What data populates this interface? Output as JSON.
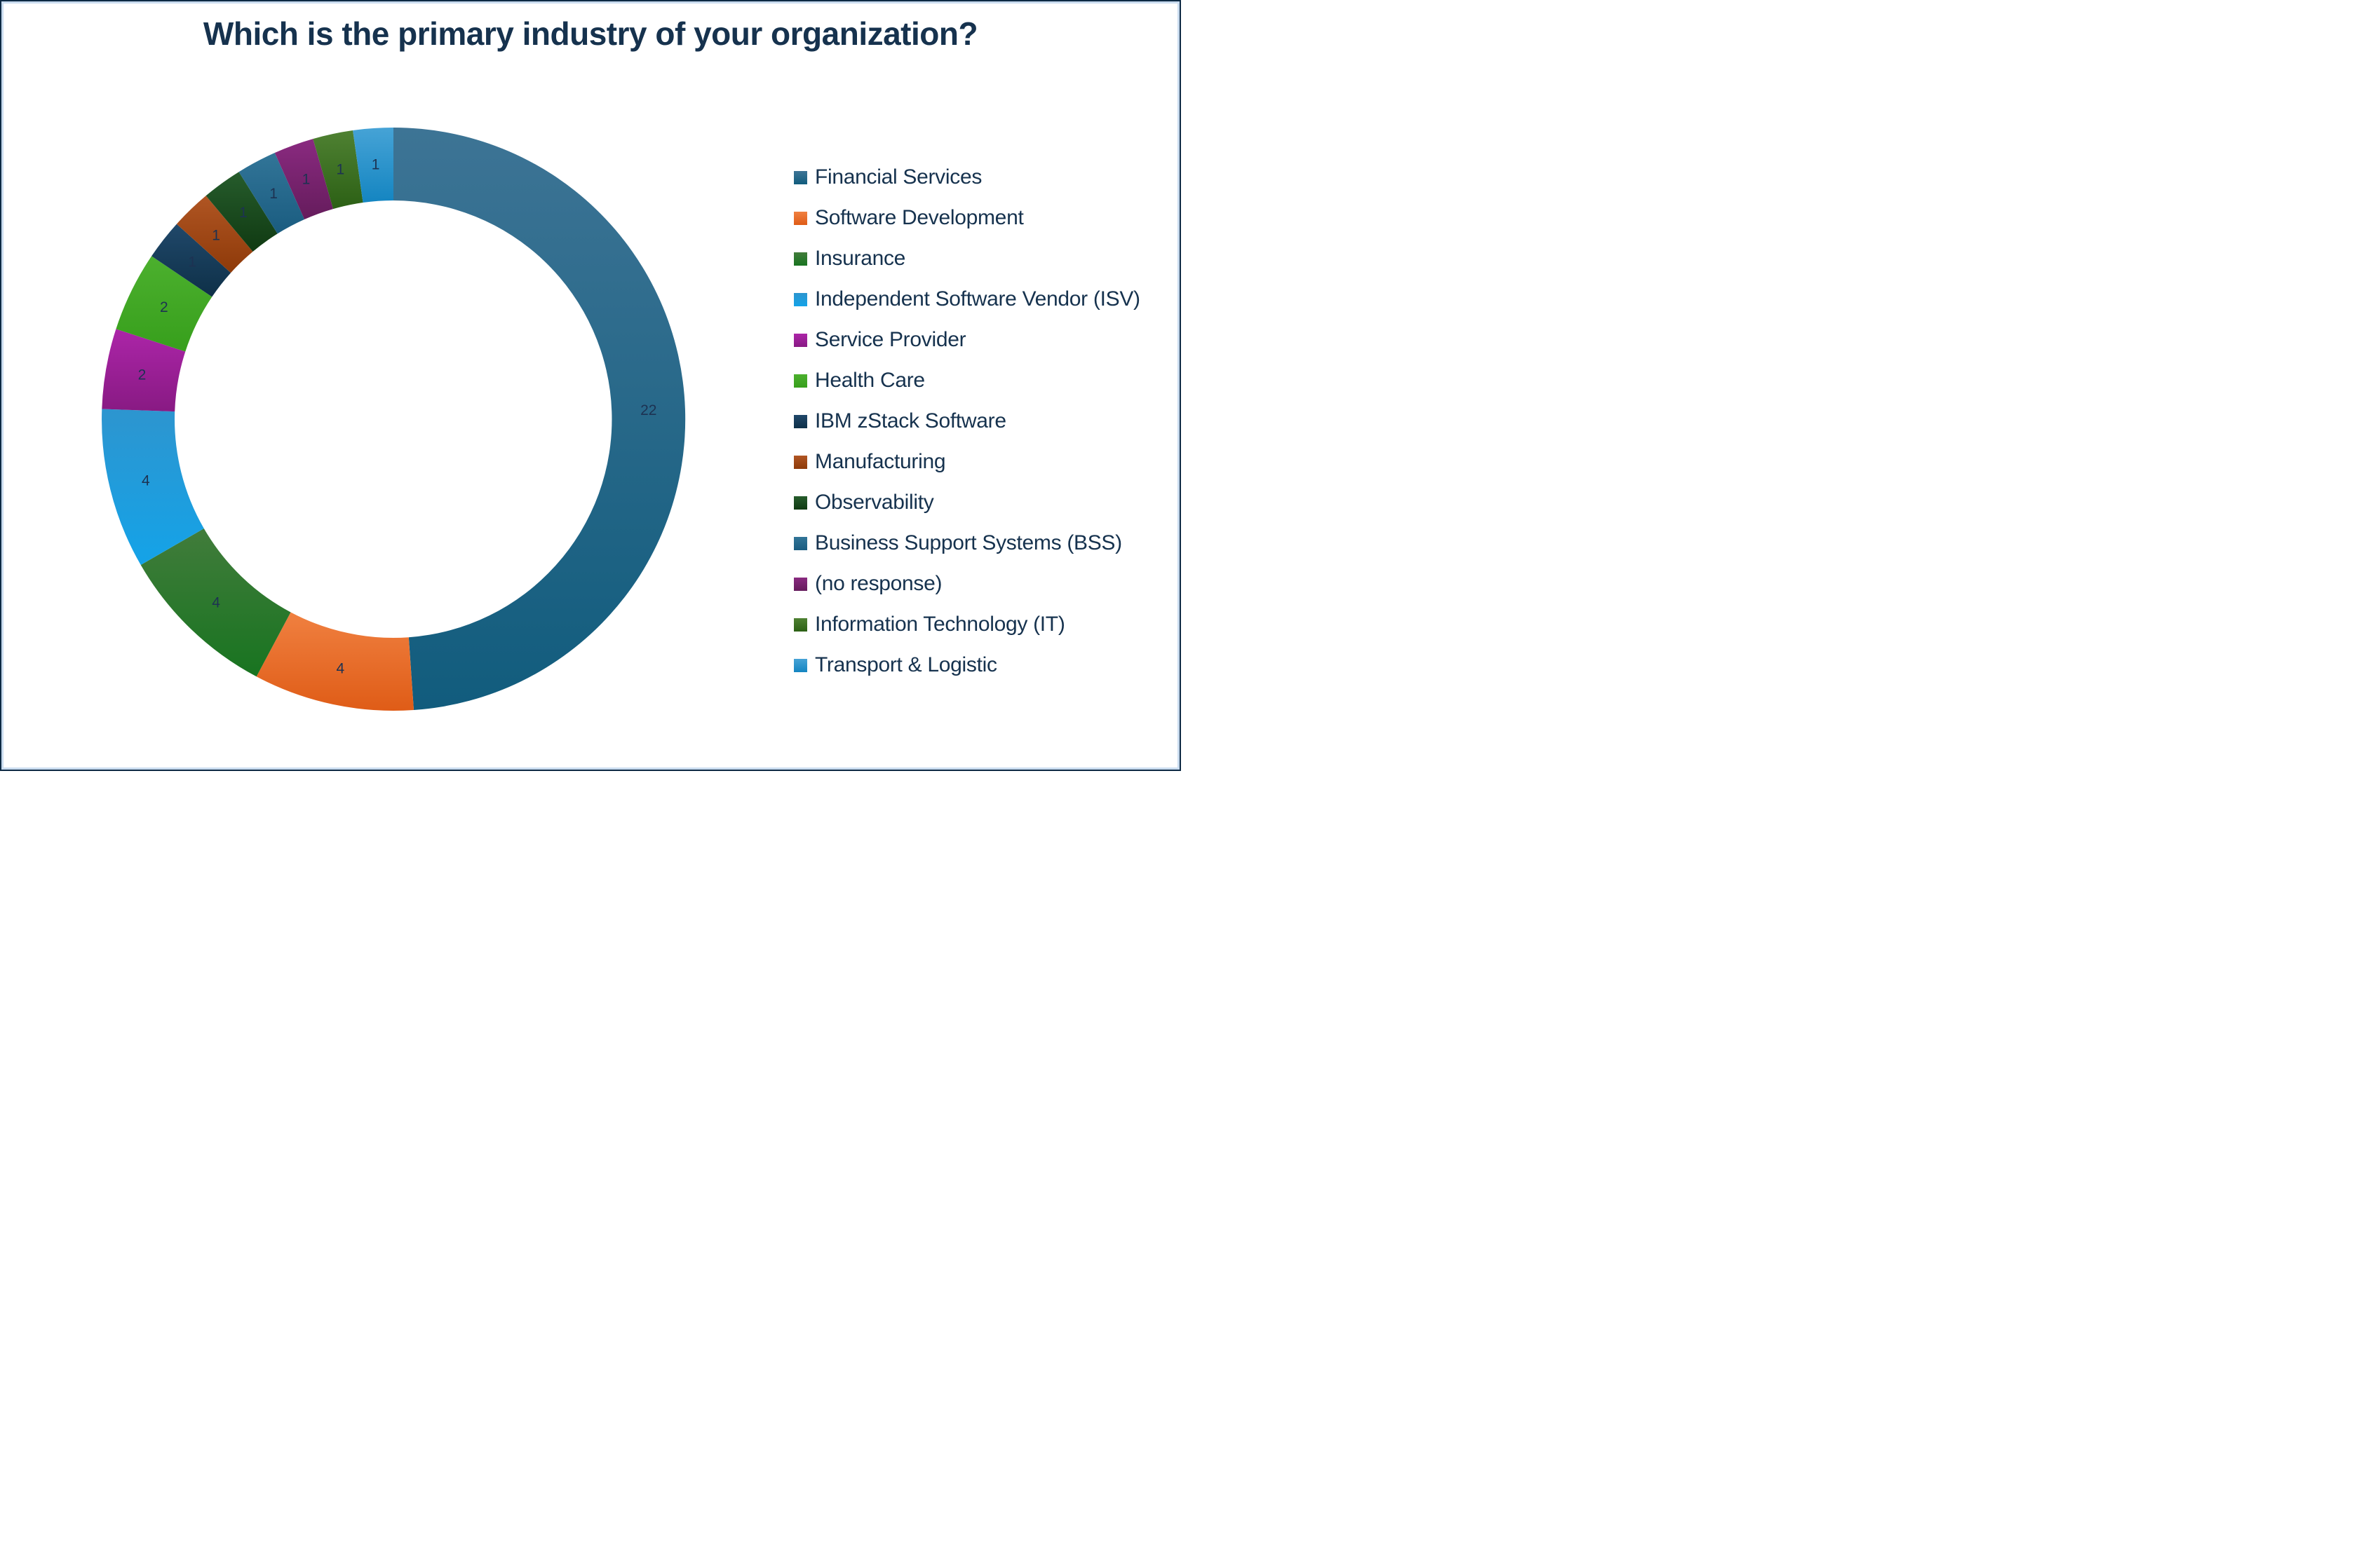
{
  "frame": {
    "outer_border_color": "#0e2a44",
    "inner_border_color": "#cadcf0",
    "background": "#ffffff"
  },
  "chart_data": {
    "type": "pie",
    "subtype": "donut",
    "title": "Which is the primary industry of your organization?",
    "title_color": "#16324e",
    "total": 45,
    "donut": {
      "inner_ratio": 0.75,
      "start_angle_deg": 0,
      "direction": "clockwise"
    },
    "legend_position": "right",
    "label_color": "#1d3252",
    "legend_text_color": "#16324e",
    "segments": [
      {
        "label": "Financial Services",
        "value": 22,
        "color": "#2e6d8e",
        "gradient": {
          "top": "#3d7495",
          "bottom": "#115c7d"
        }
      },
      {
        "label": "Software Development",
        "value": 4,
        "color": "#ec6f2d",
        "gradient": {
          "top": "#f08040",
          "bottom": "#df5c17"
        }
      },
      {
        "label": "Insurance",
        "value": 4,
        "color": "#217a28",
        "gradient": {
          "top": "#417c3b",
          "bottom": "#187420"
        }
      },
      {
        "label": "Independent Software Vendor (ISV)",
        "value": 4,
        "color": "#29a2e2",
        "gradient": {
          "top": "#2d95cf",
          "bottom": "#14a3e8"
        }
      },
      {
        "label": "Service Provider",
        "value": 2,
        "color": "#a521a0",
        "gradient": {
          "top": "#ac25a8",
          "bottom": "#881a83"
        }
      },
      {
        "label": "Health Care",
        "value": 2,
        "color": "#46ad2a",
        "gradient": {
          "top": "#4cb02e",
          "bottom": "#379f1c"
        }
      },
      {
        "label": "IBM zStack Software",
        "value": 1,
        "color": "#173f5e",
        "gradient": {
          "top": "#20486a",
          "bottom": "#0e3048"
        }
      },
      {
        "label": "Manufacturing",
        "value": 1,
        "color": "#a8440f",
        "gradient": {
          "top": "#b05523",
          "bottom": "#8e3a09"
        }
      },
      {
        "label": "Observability",
        "value": 1,
        "color": "#17471a",
        "gradient": {
          "top": "#265c2c",
          "bottom": "#103a12"
        }
      },
      {
        "label": "Business Support Systems (BSS)",
        "value": 1,
        "color": "#266b90",
        "gradient": {
          "top": "#327598",
          "bottom": "#1a5c80"
        }
      },
      {
        "label": "(no response)",
        "value": 1,
        "color": "#7c2270",
        "gradient": {
          "top": "#8a2a80",
          "bottom": "#651c5c"
        }
      },
      {
        "label": "Information Technology (IT)",
        "value": 1,
        "color": "#42761f",
        "gradient": {
          "top": "#4f8132",
          "bottom": "#2c6015"
        }
      },
      {
        "label": "Transport & Logistic",
        "value": 1,
        "color": "#2c99cf",
        "gradient": {
          "top": "#46a3d6",
          "bottom": "#1485c1"
        }
      }
    ]
  }
}
